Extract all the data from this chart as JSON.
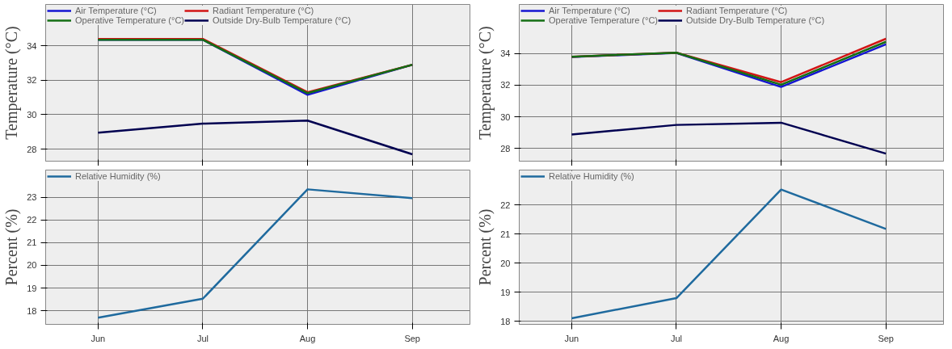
{
  "chart_data": [
    {
      "type": "line",
      "ylabel": "Temperature (°C)",
      "categories": [
        null,
        null,
        null,
        null
      ],
      "ylim": [
        27.3,
        36.4
      ],
      "yticks": [
        28,
        30,
        32,
        34
      ],
      "grid": true,
      "legend": "top left",
      "series": [
        {
          "name": "Air Temperature (°C)",
          "color": "#1414d2",
          "values": [
            34.35,
            34.35,
            31.15,
            32.9
          ]
        },
        {
          "name": "Radiant Temperature (°C)",
          "color": "#d21414",
          "values": [
            34.4,
            34.4,
            31.3,
            32.9
          ]
        },
        {
          "name": "Operative Temperature (°C)",
          "color": "#146e14",
          "values": [
            34.35,
            34.35,
            31.25,
            32.9
          ]
        },
        {
          "name": "Outside Dry-Bulb Temperature (°C)",
          "color": "#000050",
          "values": [
            28.95,
            29.48,
            29.66,
            27.7
          ]
        }
      ]
    },
    {
      "type": "line",
      "ylabel": "Temperature (°C)",
      "categories": [
        null,
        null,
        null,
        null
      ],
      "ylim": [
        27.2,
        37.1
      ],
      "yticks": [
        28,
        30,
        32,
        34
      ],
      "grid": true,
      "legend": "top left",
      "series": [
        {
          "name": "Air Temperature (°C)",
          "color": "#1414d2",
          "values": [
            33.78,
            34.04,
            31.89,
            34.58
          ]
        },
        {
          "name": "Radiant Temperature (°C)",
          "color": "#d21414",
          "values": [
            33.8,
            34.05,
            32.19,
            34.93
          ]
        },
        {
          "name": "Operative Temperature (°C)",
          "color": "#146e14",
          "values": [
            33.8,
            34.05,
            32.03,
            34.74
          ]
        },
        {
          "name": "Outside Dry-Bulb Temperature (°C)",
          "color": "#000050",
          "values": [
            28.89,
            29.49,
            29.63,
            27.68
          ]
        }
      ]
    },
    {
      "type": "line",
      "ylabel": "Percent (%)",
      "categories": [
        "Jun",
        "Jul",
        "Aug",
        "Sep"
      ],
      "ylim": [
        17.4,
        24.2
      ],
      "yticks": [
        18,
        19,
        20,
        21,
        22,
        23
      ],
      "grid": true,
      "legend": "top left",
      "series": [
        {
          "name": "Relative Humidity (%)",
          "color": "#1f6a9e",
          "values": [
            17.69,
            18.53,
            23.35,
            22.96
          ]
        }
      ]
    },
    {
      "type": "line",
      "ylabel": "Percent (%)",
      "categories": [
        "Jun",
        "Jul",
        "Aug",
        "Sep"
      ],
      "ylim": [
        17.9,
        23.2
      ],
      "yticks": [
        18,
        19,
        20,
        21,
        22
      ],
      "grid": true,
      "legend": "top left",
      "series": [
        {
          "name": "Relative Humidity (%)",
          "color": "#1f6a9e",
          "values": [
            18.11,
            18.8,
            22.53,
            21.18
          ]
        }
      ]
    }
  ]
}
